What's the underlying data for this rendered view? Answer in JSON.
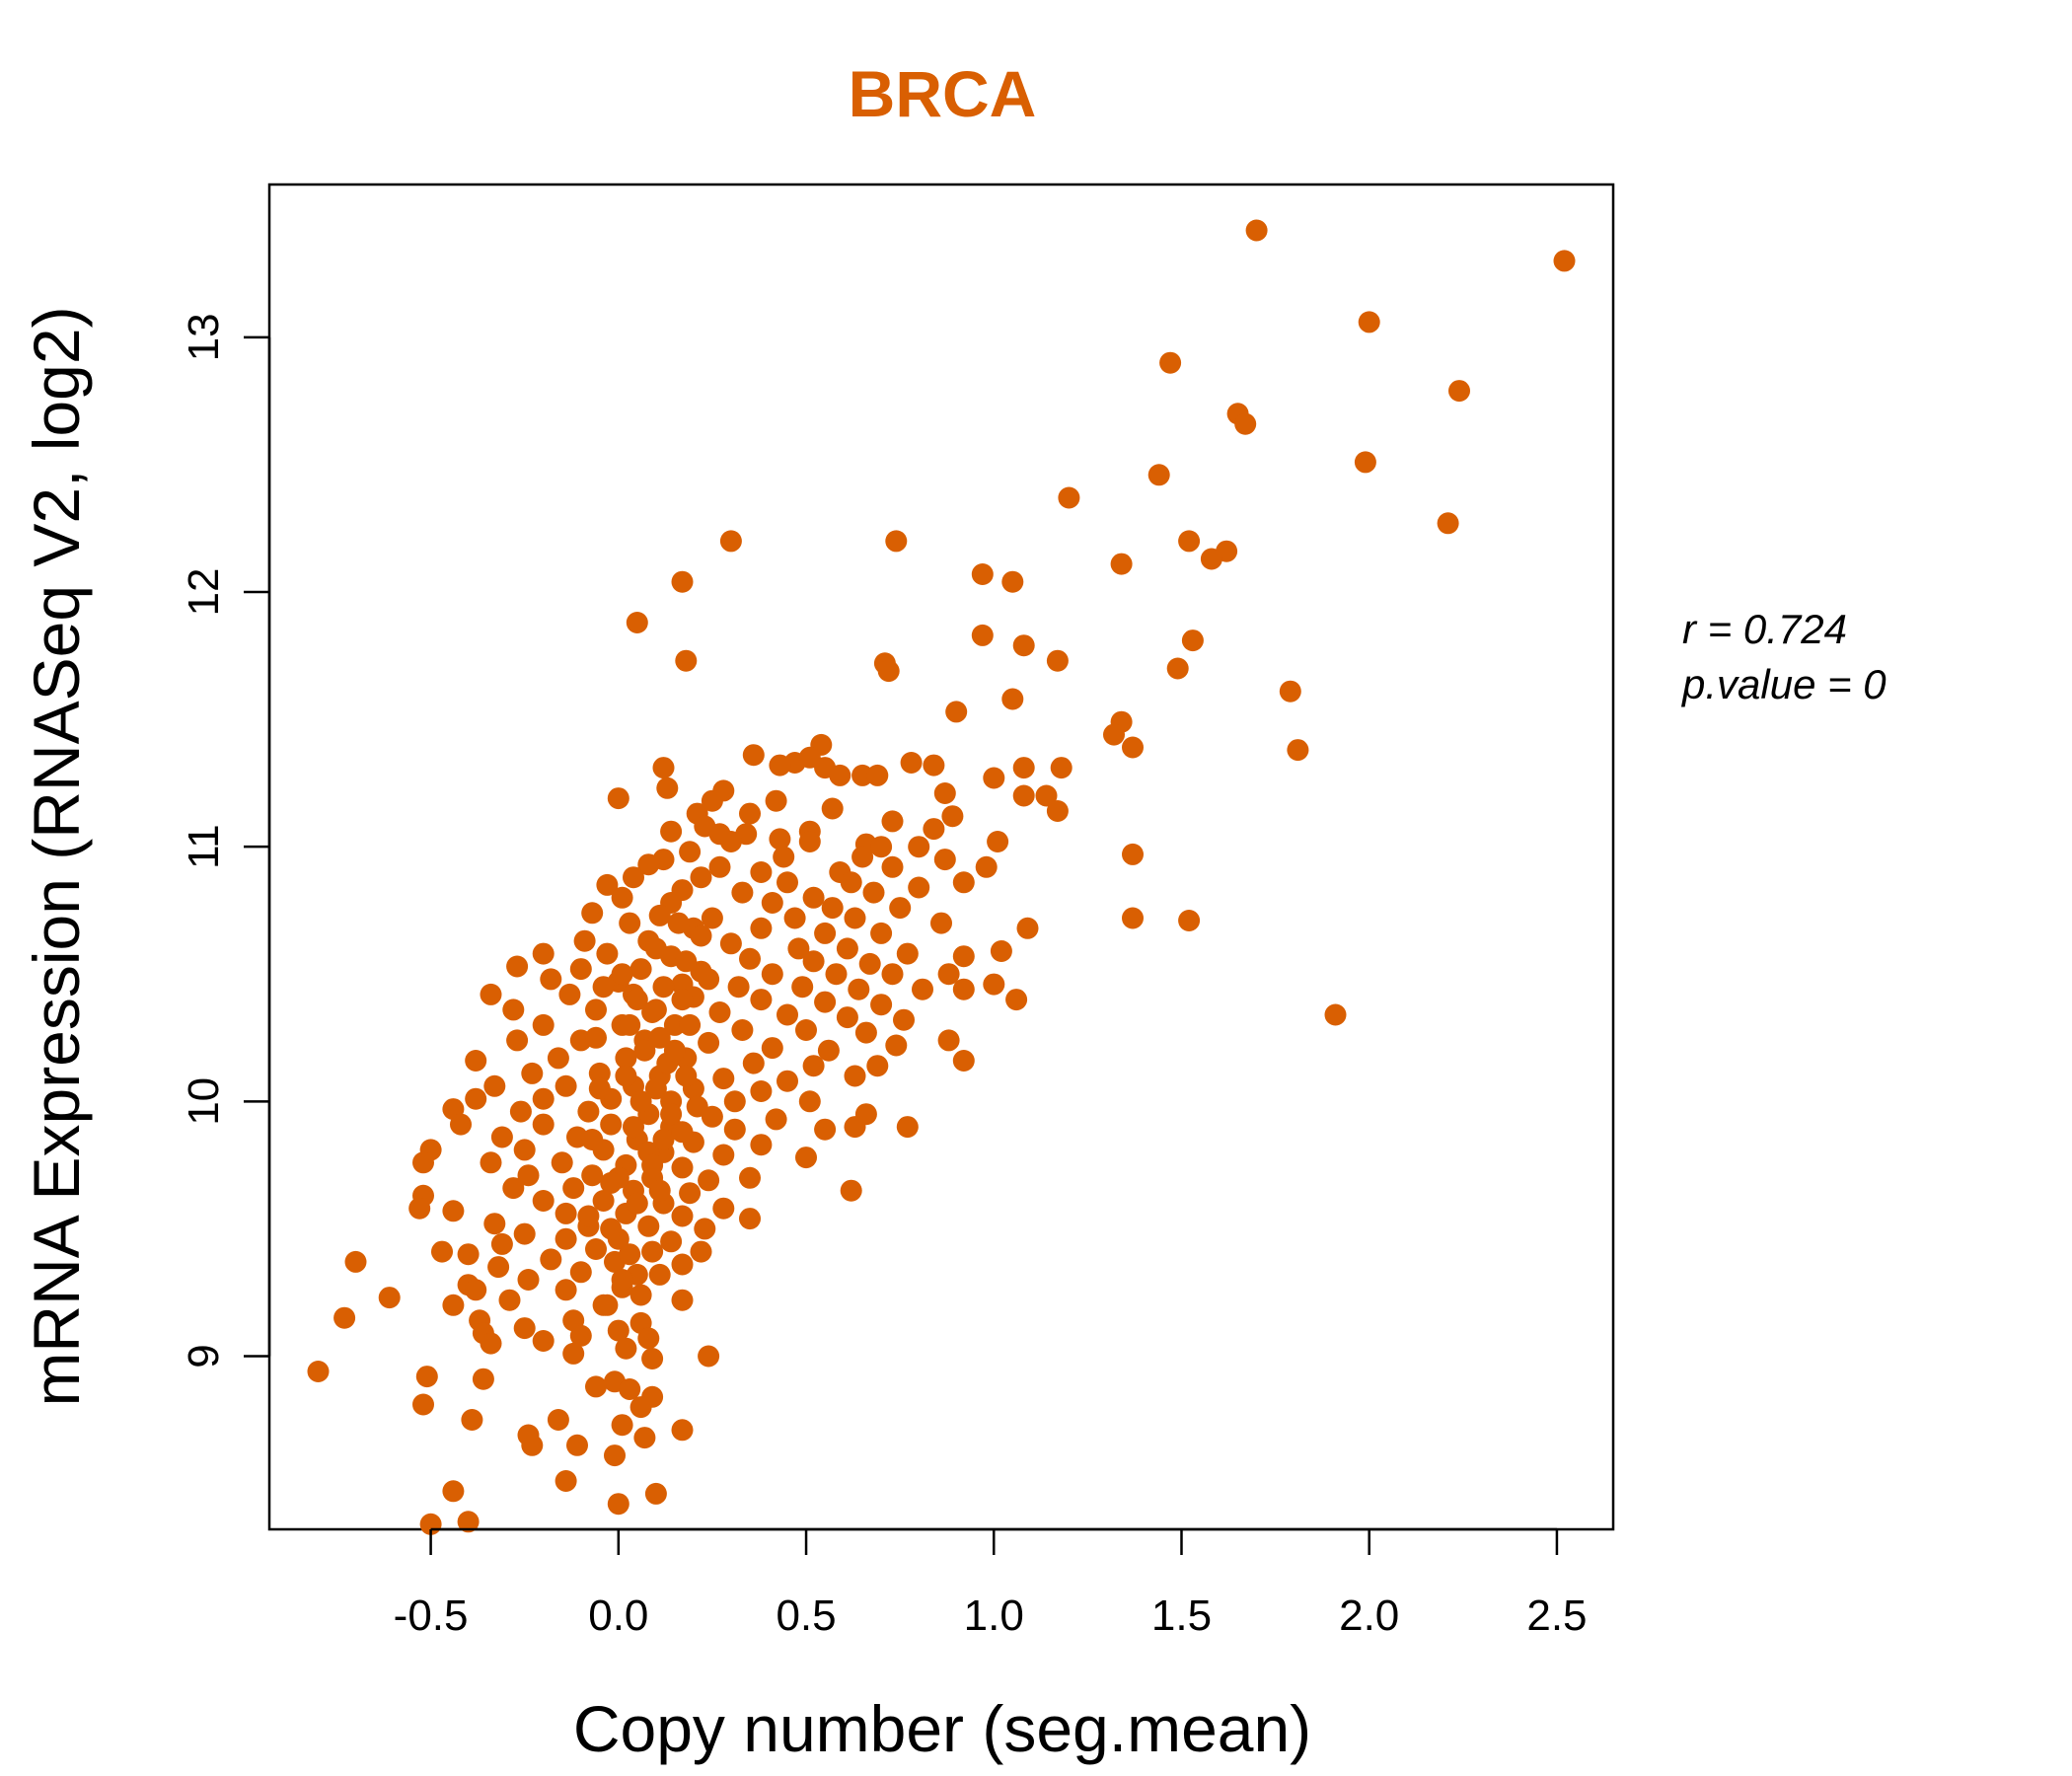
{
  "chart_data": {
    "type": "scatter",
    "title": "BRCA",
    "xlabel": "Copy number (seg.mean)",
    "ylabel": "mRNA Expression (RNASeq V2, log2)",
    "xlim": [
      -0.93,
      2.65
    ],
    "ylim": [
      8.32,
      13.6
    ],
    "x_ticks": [
      -0.5,
      0.0,
      0.5,
      1.0,
      1.5,
      2.0,
      2.5
    ],
    "x_tick_labels": [
      "-0.5",
      "0.0",
      "0.5",
      "1.0",
      "1.5",
      "2.0",
      "2.5"
    ],
    "y_ticks": [
      9,
      10,
      11,
      12,
      13
    ],
    "y_tick_labels": [
      "9",
      "10",
      "11",
      "12",
      "13"
    ],
    "grid": false,
    "stats": {
      "r_label": "r = 0.724",
      "p_label": "p.value = 0"
    },
    "colors": {
      "points": "#d95f02",
      "title": "#d95f02",
      "axis": "#000000"
    },
    "points": [
      [
        1.7,
        13.42
      ],
      [
        2.52,
        13.3
      ],
      [
        2.0,
        13.06
      ],
      [
        1.47,
        12.9
      ],
      [
        2.24,
        12.79
      ],
      [
        1.65,
        12.7
      ],
      [
        1.67,
        12.66
      ],
      [
        1.44,
        12.46
      ],
      [
        1.99,
        12.51
      ],
      [
        1.2,
        12.37
      ],
      [
        2.21,
        12.27
      ],
      [
        0.3,
        12.2
      ],
      [
        0.74,
        12.2
      ],
      [
        1.52,
        12.2
      ],
      [
        1.62,
        12.16
      ],
      [
        1.58,
        12.13
      ],
      [
        1.34,
        12.11
      ],
      [
        0.97,
        12.07
      ],
      [
        1.05,
        12.04
      ],
      [
        0.17,
        12.04
      ],
      [
        0.05,
        11.88
      ],
      [
        0.97,
        11.83
      ],
      [
        1.53,
        11.81
      ],
      [
        1.08,
        11.79
      ],
      [
        0.18,
        11.73
      ],
      [
        1.17,
        11.73
      ],
      [
        0.71,
        11.72
      ],
      [
        0.72,
        11.69
      ],
      [
        1.49,
        11.7
      ],
      [
        1.79,
        11.61
      ],
      [
        1.05,
        11.58
      ],
      [
        0.9,
        11.53
      ],
      [
        1.34,
        11.49
      ],
      [
        1.32,
        11.44
      ],
      [
        1.37,
        11.39
      ],
      [
        1.81,
        11.38
      ],
      [
        0.36,
        11.36
      ],
      [
        0.54,
        11.4
      ],
      [
        0.47,
        11.33
      ],
      [
        0.51,
        11.35
      ],
      [
        0.55,
        11.31
      ],
      [
        0.43,
        11.32
      ],
      [
        0.12,
        11.31
      ],
      [
        1.08,
        11.31
      ],
      [
        1.18,
        11.31
      ],
      [
        0.78,
        11.33
      ],
      [
        0.84,
        11.32
      ],
      [
        0.65,
        11.28
      ],
      [
        0.69,
        11.28
      ],
      [
        0.59,
        11.28
      ],
      [
        1.0,
        11.27
      ],
      [
        0.13,
        11.23
      ],
      [
        0.28,
        11.22
      ],
      [
        0.87,
        11.21
      ],
      [
        1.08,
        11.2
      ],
      [
        1.14,
        11.2
      ],
      [
        0.0,
        11.19
      ],
      [
        0.25,
        11.18
      ],
      [
        0.42,
        11.18
      ],
      [
        0.21,
        11.13
      ],
      [
        0.35,
        11.13
      ],
      [
        0.57,
        11.15
      ],
      [
        1.17,
        11.14
      ],
      [
        0.23,
        11.08
      ],
      [
        0.14,
        11.06
      ],
      [
        0.51,
        11.06
      ],
      [
        0.27,
        11.05
      ],
      [
        0.34,
        11.05
      ],
      [
        0.84,
        11.07
      ],
      [
        0.89,
        11.12
      ],
      [
        0.73,
        11.1
      ],
      [
        0.43,
        11.03
      ],
      [
        0.3,
        11.02
      ],
      [
        0.51,
        11.02
      ],
      [
        0.66,
        11.01
      ],
      [
        0.7,
        11.0
      ],
      [
        0.8,
        11.0
      ],
      [
        1.01,
        11.02
      ],
      [
        0.19,
        10.98
      ],
      [
        0.44,
        10.96
      ],
      [
        0.65,
        10.96
      ],
      [
        0.87,
        10.95
      ],
      [
        0.12,
        10.95
      ],
      [
        0.08,
        10.93
      ],
      [
        0.27,
        10.92
      ],
      [
        0.38,
        10.9
      ],
      [
        0.59,
        10.9
      ],
      [
        0.73,
        10.92
      ],
      [
        0.98,
        10.92
      ],
      [
        1.37,
        10.97
      ],
      [
        0.04,
        10.88
      ],
      [
        0.22,
        10.88
      ],
      [
        0.45,
        10.86
      ],
      [
        0.62,
        10.86
      ],
      [
        0.8,
        10.84
      ],
      [
        0.92,
        10.86
      ],
      [
        -0.03,
        10.85
      ],
      [
        0.17,
        10.83
      ],
      [
        0.33,
        10.82
      ],
      [
        0.52,
        10.8
      ],
      [
        0.68,
        10.82
      ],
      [
        0.01,
        10.8
      ],
      [
        0.14,
        10.78
      ],
      [
        0.41,
        10.78
      ],
      [
        0.57,
        10.76
      ],
      [
        0.75,
        10.76
      ],
      [
        -0.07,
        10.74
      ],
      [
        0.11,
        10.73
      ],
      [
        0.25,
        10.72
      ],
      [
        0.47,
        10.72
      ],
      [
        0.63,
        10.72
      ],
      [
        0.86,
        10.7
      ],
      [
        1.37,
        10.72
      ],
      [
        1.52,
        10.71
      ],
      [
        0.03,
        10.7
      ],
      [
        0.2,
        10.68
      ],
      [
        0.38,
        10.68
      ],
      [
        0.55,
        10.66
      ],
      [
        0.7,
        10.66
      ],
      [
        1.09,
        10.68
      ],
      [
        -0.09,
        10.63
      ],
      [
        0.08,
        10.63
      ],
      [
        0.3,
        10.62
      ],
      [
        0.48,
        10.6
      ],
      [
        0.61,
        10.6
      ],
      [
        0.77,
        10.58
      ],
      [
        1.02,
        10.59
      ],
      [
        -0.2,
        10.58
      ],
      [
        -0.03,
        10.58
      ],
      [
        0.14,
        10.57
      ],
      [
        0.35,
        10.56
      ],
      [
        0.52,
        10.55
      ],
      [
        0.67,
        10.54
      ],
      [
        0.92,
        10.57
      ],
      [
        -0.27,
        10.53
      ],
      [
        -0.1,
        10.52
      ],
      [
        0.06,
        10.52
      ],
      [
        0.22,
        10.51
      ],
      [
        0.41,
        10.5
      ],
      [
        0.58,
        10.5
      ],
      [
        0.73,
        10.5
      ],
      [
        0.88,
        10.5
      ],
      [
        -0.18,
        10.48
      ],
      [
        0.0,
        10.47
      ],
      [
        0.17,
        10.46
      ],
      [
        0.32,
        10.45
      ],
      [
        0.49,
        10.45
      ],
      [
        0.64,
        10.44
      ],
      [
        0.81,
        10.44
      ],
      [
        1.0,
        10.46
      ],
      [
        -0.34,
        10.42
      ],
      [
        -0.13,
        10.42
      ],
      [
        0.04,
        10.42
      ],
      [
        0.2,
        10.41
      ],
      [
        0.38,
        10.4
      ],
      [
        0.55,
        10.39
      ],
      [
        0.7,
        10.38
      ],
      [
        0.92,
        10.44
      ],
      [
        1.06,
        10.4
      ],
      [
        -0.28,
        10.36
      ],
      [
        -0.06,
        10.36
      ],
      [
        0.1,
        10.36
      ],
      [
        0.27,
        10.35
      ],
      [
        0.45,
        10.34
      ],
      [
        0.61,
        10.33
      ],
      [
        0.76,
        10.32
      ],
      [
        1.91,
        10.34
      ],
      [
        -0.2,
        10.3
      ],
      [
        0.01,
        10.3
      ],
      [
        0.15,
        10.3
      ],
      [
        0.33,
        10.28
      ],
      [
        0.5,
        10.28
      ],
      [
        0.66,
        10.27
      ],
      [
        0.88,
        10.24
      ],
      [
        -0.27,
        10.24
      ],
      [
        -0.1,
        10.24
      ],
      [
        0.07,
        10.24
      ],
      [
        0.24,
        10.23
      ],
      [
        0.41,
        10.21
      ],
      [
        0.56,
        10.2
      ],
      [
        0.74,
        10.22
      ],
      [
        0.92,
        10.16
      ],
      [
        -0.38,
        10.16
      ],
      [
        -0.16,
        10.17
      ],
      [
        0.02,
        10.17
      ],
      [
        0.18,
        10.17
      ],
      [
        0.36,
        10.15
      ],
      [
        0.52,
        10.14
      ],
      [
        0.69,
        10.14
      ],
      [
        -0.23,
        10.11
      ],
      [
        -0.05,
        10.11
      ],
      [
        0.11,
        10.1
      ],
      [
        0.28,
        10.09
      ],
      [
        0.45,
        10.08
      ],
      [
        0.63,
        10.1
      ],
      [
        -0.33,
        10.06
      ],
      [
        -0.14,
        10.06
      ],
      [
        0.04,
        10.06
      ],
      [
        0.2,
        10.05
      ],
      [
        0.38,
        10.04
      ],
      [
        -0.38,
        10.01
      ],
      [
        -0.2,
        10.01
      ],
      [
        -0.02,
        10.01
      ],
      [
        0.14,
        10.0
      ],
      [
        0.31,
        10.0
      ],
      [
        0.51,
        10.0
      ],
      [
        0.66,
        9.95
      ],
      [
        -0.44,
        9.97
      ],
      [
        -0.26,
        9.96
      ],
      [
        -0.08,
        9.96
      ],
      [
        0.08,
        9.95
      ],
      [
        0.25,
        9.94
      ],
      [
        0.42,
        9.93
      ],
      [
        0.77,
        9.9
      ],
      [
        -0.42,
        9.91
      ],
      [
        -0.2,
        9.91
      ],
      [
        -0.02,
        9.91
      ],
      [
        0.14,
        9.9
      ],
      [
        0.31,
        9.89
      ],
      [
        0.55,
        9.89
      ],
      [
        0.63,
        9.9
      ],
      [
        -0.31,
        9.86
      ],
      [
        -0.11,
        9.86
      ],
      [
        0.05,
        9.85
      ],
      [
        0.2,
        9.84
      ],
      [
        0.38,
        9.83
      ],
      [
        -0.5,
        9.81
      ],
      [
        -0.25,
        9.81
      ],
      [
        -0.04,
        9.81
      ],
      [
        0.12,
        9.8
      ],
      [
        0.28,
        9.79
      ],
      [
        0.5,
        9.78
      ],
      [
        -0.52,
        9.76
      ],
      [
        -0.34,
        9.76
      ],
      [
        -0.15,
        9.76
      ],
      [
        0.02,
        9.75
      ],
      [
        0.17,
        9.74
      ],
      [
        0.35,
        9.7
      ],
      [
        -0.24,
        9.71
      ],
      [
        -0.07,
        9.71
      ],
      [
        0.09,
        9.7
      ],
      [
        0.24,
        9.69
      ],
      [
        -0.28,
        9.66
      ],
      [
        -0.12,
        9.66
      ],
      [
        0.04,
        9.65
      ],
      [
        0.19,
        9.64
      ],
      [
        0.62,
        9.65
      ],
      [
        -0.52,
        9.63
      ],
      [
        -0.2,
        9.61
      ],
      [
        -0.04,
        9.61
      ],
      [
        0.12,
        9.6
      ],
      [
        0.28,
        9.58
      ],
      [
        -0.53,
        9.58
      ],
      [
        -0.44,
        9.57
      ],
      [
        -0.14,
        9.56
      ],
      [
        0.02,
        9.56
      ],
      [
        0.17,
        9.55
      ],
      [
        0.35,
        9.54
      ],
      [
        -0.33,
        9.52
      ],
      [
        -0.08,
        9.51
      ],
      [
        0.08,
        9.51
      ],
      [
        0.23,
        9.5
      ],
      [
        -0.25,
        9.48
      ],
      [
        -0.14,
        9.46
      ],
      [
        0.0,
        9.46
      ],
      [
        0.14,
        9.45
      ],
      [
        -0.31,
        9.44
      ],
      [
        -0.06,
        9.42
      ],
      [
        0.09,
        9.41
      ],
      [
        0.22,
        9.41
      ],
      [
        -0.47,
        9.41
      ],
      [
        -0.4,
        9.4
      ],
      [
        -0.18,
        9.38
      ],
      [
        -0.01,
        9.37
      ],
      [
        0.17,
        9.36
      ],
      [
        -0.7,
        9.37
      ],
      [
        -0.32,
        9.35
      ],
      [
        -0.1,
        9.33
      ],
      [
        0.05,
        9.32
      ],
      [
        0.11,
        9.32
      ],
      [
        -0.24,
        9.3
      ],
      [
        0.01,
        9.27
      ],
      [
        -0.4,
        9.28
      ],
      [
        -0.38,
        9.26
      ],
      [
        -0.14,
        9.26
      ],
      [
        0.06,
        9.24
      ],
      [
        -0.61,
        9.23
      ],
      [
        -0.29,
        9.22
      ],
      [
        0.17,
        9.22
      ],
      [
        -0.44,
        9.2
      ],
      [
        -0.04,
        9.2
      ],
      [
        -0.73,
        9.15
      ],
      [
        -0.37,
        9.14
      ],
      [
        -0.12,
        9.14
      ],
      [
        0.06,
        9.13
      ],
      [
        -0.25,
        9.11
      ],
      [
        0.0,
        9.1
      ],
      [
        -0.36,
        9.09
      ],
      [
        -0.1,
        9.08
      ],
      [
        0.08,
        9.07
      ],
      [
        -0.2,
        9.06
      ],
      [
        -0.34,
        9.05
      ],
      [
        0.02,
        9.03
      ],
      [
        0.24,
        9.0
      ],
      [
        -0.12,
        9.01
      ],
      [
        0.09,
        8.99
      ],
      [
        -0.8,
        8.94
      ],
      [
        -0.51,
        8.92
      ],
      [
        -0.36,
        8.91
      ],
      [
        -0.01,
        8.9
      ],
      [
        -0.06,
        8.88
      ],
      [
        0.03,
        8.87
      ],
      [
        -0.52,
        8.81
      ],
      [
        0.09,
        8.84
      ],
      [
        0.06,
        8.8
      ],
      [
        -0.39,
        8.75
      ],
      [
        -0.16,
        8.75
      ],
      [
        0.01,
        8.73
      ],
      [
        0.17,
        8.71
      ],
      [
        -0.24,
        8.69
      ],
      [
        0.07,
        8.68
      ],
      [
        -0.23,
        8.65
      ],
      [
        -0.11,
        8.65
      ],
      [
        -0.01,
        8.61
      ],
      [
        -0.44,
        8.47
      ],
      [
        -0.14,
        8.51
      ],
      [
        0.1,
        8.46
      ],
      [
        0.0,
        8.42
      ],
      [
        -0.5,
        8.34
      ],
      [
        -0.4,
        8.35
      ],
      [
        0.01,
        10.5
      ],
      [
        0.05,
        10.4
      ],
      [
        0.03,
        10.3
      ],
      [
        0.07,
        10.2
      ],
      [
        0.02,
        10.1
      ],
      [
        0.06,
        10.0
      ],
      [
        0.04,
        9.9
      ],
      [
        0.08,
        9.8
      ],
      [
        0.0,
        9.7
      ],
      [
        0.05,
        9.6
      ],
      [
        -0.02,
        9.5
      ],
      [
        0.03,
        9.4
      ],
      [
        0.01,
        9.3
      ],
      [
        -0.03,
        9.2
      ],
      [
        0.1,
        10.6
      ],
      [
        0.12,
        10.45
      ],
      [
        0.09,
        10.35
      ],
      [
        0.11,
        10.25
      ],
      [
        0.13,
        10.15
      ],
      [
        0.1,
        10.05
      ],
      [
        0.14,
        9.95
      ],
      [
        0.12,
        9.85
      ],
      [
        0.09,
        9.75
      ],
      [
        0.11,
        9.65
      ],
      [
        0.16,
        10.7
      ],
      [
        0.18,
        10.55
      ],
      [
        0.17,
        10.4
      ],
      [
        0.19,
        10.3
      ],
      [
        0.15,
        10.2
      ],
      [
        0.18,
        10.1
      ],
      [
        0.21,
        9.98
      ],
      [
        0.17,
        9.88
      ],
      [
        -0.04,
        10.45
      ],
      [
        -0.06,
        10.25
      ],
      [
        -0.05,
        10.05
      ],
      [
        -0.07,
        9.85
      ],
      [
        -0.02,
        9.68
      ],
      [
        -0.08,
        9.55
      ],
      [
        0.22,
        10.65
      ],
      [
        0.24,
        10.48
      ]
    ]
  }
}
